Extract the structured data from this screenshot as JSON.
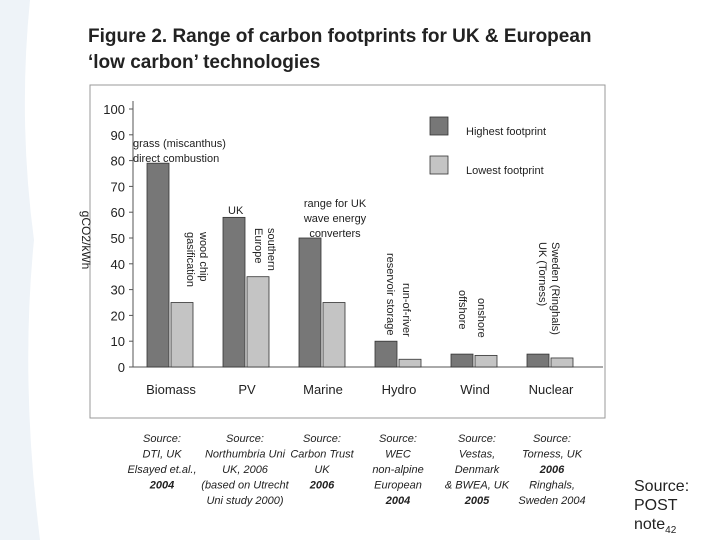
{
  "chart_data": {
    "type": "bar",
    "title": [
      "Figure 2. Range of carbon footprints for UK & European",
      "‘low carbon’ technologies"
    ],
    "y_label": "gCO2/kWh",
    "categories": [
      "Biomass",
      "PV",
      "Marine",
      "Hydro",
      "Wind",
      "Nuclear"
    ],
    "series": [
      {
        "name": "Highest footprint",
        "color": "#777777",
        "values": [
          79,
          58,
          50,
          10,
          5,
          5
        ]
      },
      {
        "name": "Lowest footprint",
        "color": "#c4c4c4",
        "values": [
          25,
          35,
          25,
          3,
          4.5,
          3.5
        ]
      }
    ],
    "ylim": [
      0,
      100
    ],
    "yticks": [
      0,
      10,
      20,
      30,
      40,
      50,
      60,
      70,
      80,
      90,
      100
    ],
    "annotations": [
      [
        "grass (miscanthus)",
        "direct combustion"
      ],
      [
        "wood chip",
        "gasification"
      ],
      [
        "UK"
      ],
      [
        "southern",
        "Europe"
      ],
      [
        "range for UK",
        "wave energy",
        "converters"
      ],
      [
        "reservoir storage"
      ],
      [
        "run-of-river"
      ],
      [
        "offshore"
      ],
      [
        "onshore"
      ],
      [
        "Sweden (Ringhals)",
        "UK (Torness)"
      ]
    ],
    "sources": [
      [
        "Source:",
        "DTI, UK",
        "Elsayed et.al.,",
        "2004"
      ],
      [
        "Source:",
        "Northumbria Uni",
        "UK, 2006",
        "(based on Utrecht",
        "Uni study 2000)"
      ],
      [
        "Source:",
        "Carbon Trust",
        "UK",
        "2006"
      ],
      [
        "Source:",
        "WEC",
        "non-alpine",
        "European",
        "2004"
      ],
      [
        "Source:",
        "Vestas,",
        "Denmark",
        "& BWEA, UK",
        "2005"
      ],
      [
        "Source:",
        "Torness, UK",
        "2006",
        "Ringhals,",
        "Sweden 2004"
      ]
    ]
  },
  "footer": {
    "lines": [
      "Source:",
      "POST",
      "note"
    ],
    "sub": "42"
  }
}
